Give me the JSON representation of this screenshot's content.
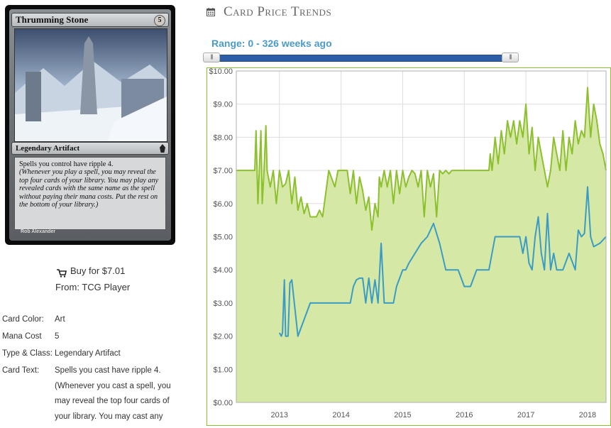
{
  "card": {
    "name": "Thrumming Stone",
    "mana_cost": "5",
    "type_line": "Legendary Artifact",
    "rules_text": "Spells you control have ripple 4.",
    "reminder_text": "(Whenever you play a spell, you may reveal the top four cards of your library. You may play any revealed cards with the same name as the spell without paying their mana costs. Put the rest on the bottom of your library.)",
    "artist": "Rob Alexander"
  },
  "buy": {
    "label": "Buy for $7.01",
    "from": "From: TCG Player",
    "icon": "cart-icon"
  },
  "details": [
    {
      "label": "Card Color:",
      "value": "Art"
    },
    {
      "label": "Mana Cost",
      "value": "5"
    },
    {
      "label": "Type & Class:",
      "value": "Legendary Artifact"
    },
    {
      "label": "Card Text:",
      "value": "Spells you cast have ripple 4.\n(Whenever you cast a spell, you may reveal the top four cards of your library. You may cast any"
    }
  ],
  "price_trends": {
    "title": "Card Price Trends",
    "icon": "calendar-icon",
    "range_label": "Range: 0 - 326 weeks ago",
    "slider": {
      "min_fraction": 0.0,
      "max_fraction": 1.0
    }
  },
  "chart_data": {
    "type": "line",
    "title": "",
    "xlabel": "",
    "ylabel": "",
    "ylim": [
      0,
      10
    ],
    "xlim": [
      2012.3,
      2018.3
    ],
    "yticks": [
      "$0.00",
      "$1.00",
      "$2.00",
      "$3.00",
      "$4.00",
      "$5.00",
      "$6.00",
      "$7.00",
      "$8.00",
      "$9.00",
      "$10.00"
    ],
    "xticks": [
      {
        "value": 2013,
        "label": "2013"
      },
      {
        "value": 2014,
        "label": "2014"
      },
      {
        "value": 2015,
        "label": "2015"
      },
      {
        "value": 2016,
        "label": "2016"
      },
      {
        "value": 2017,
        "label": "2017"
      },
      {
        "value": 2018,
        "label": "2018"
      }
    ],
    "grid": true,
    "colors": {
      "green": "#8cc02d",
      "green_fill": "#d5e8a6",
      "blue": "#3a9cc4",
      "plot_border": "#8cc02d"
    },
    "series": [
      {
        "color": "green",
        "area": true,
        "x": [
          2012.3,
          2012.6,
          2012.62,
          2012.65,
          2012.7,
          2012.72,
          2012.75,
          2012.78,
          2012.8,
          2012.85,
          2012.9,
          2012.95,
          2013.0,
          2013.05,
          2013.1,
          2013.15,
          2013.2,
          2013.25,
          2013.3,
          2013.35,
          2013.4,
          2013.45,
          2013.5,
          2013.55,
          2013.6,
          2013.65,
          2013.7,
          2013.8,
          2013.9,
          2013.95,
          2014.0,
          2014.1,
          2014.15,
          2014.2,
          2014.25,
          2014.3,
          2014.35,
          2014.4,
          2014.45,
          2014.5,
          2014.55,
          2014.6,
          2014.62,
          2014.65,
          2014.7,
          2014.75,
          2014.8,
          2014.85,
          2014.9,
          2014.95,
          2015.0,
          2015.05,
          2015.1,
          2015.15,
          2015.2,
          2015.25,
          2015.3,
          2015.35,
          2015.4,
          2015.45,
          2015.5,
          2015.55,
          2015.6,
          2015.65,
          2015.7,
          2015.75,
          2015.8,
          2015.9,
          2016.0,
          2016.2,
          2016.4,
          2016.42,
          2016.45,
          2016.5,
          2016.55,
          2016.6,
          2016.65,
          2016.7,
          2016.75,
          2016.8,
          2016.85,
          2016.9,
          2016.95,
          2017.0,
          2017.05,
          2017.1,
          2017.15,
          2017.2,
          2017.25,
          2017.3,
          2017.35,
          2017.4,
          2017.45,
          2017.5,
          2017.55,
          2017.6,
          2017.65,
          2017.7,
          2017.75,
          2017.8,
          2017.85,
          2017.9,
          2017.95,
          2018.0,
          2018.05,
          2018.1,
          2018.15,
          2018.2,
          2018.25,
          2018.3
        ],
        "y": [
          7.0,
          7.0,
          8.2,
          6.0,
          8.2,
          6.0,
          7.0,
          8.35,
          7.0,
          6.5,
          7.0,
          6.0,
          7.0,
          6.5,
          6.6,
          7.0,
          6.0,
          6.8,
          5.8,
          6.2,
          5.7,
          6.0,
          5.6,
          5.6,
          5.6,
          5.8,
          5.6,
          7.0,
          6.5,
          7.0,
          7.0,
          7.0,
          6.3,
          7.0,
          6.0,
          6.8,
          6.4,
          5.8,
          6.2,
          5.2,
          6.0,
          5.6,
          6.8,
          6.5,
          7.0,
          6.5,
          7.0,
          6.0,
          7.0,
          6.3,
          7.0,
          6.5,
          6.8,
          7.0,
          6.9,
          6.5,
          7.0,
          5.6,
          7.0,
          6.5,
          6.9,
          5.6,
          7.0,
          6.9,
          7.0,
          6.9,
          7.0,
          7.0,
          7.0,
          7.0,
          7.0,
          7.5,
          7.0,
          8.0,
          7.2,
          8.2,
          7.5,
          8.5,
          8.0,
          8.5,
          7.8,
          8.5,
          8.0,
          9.0,
          7.5,
          8.3,
          7.0,
          8.0,
          7.5,
          7.0,
          6.5,
          7.0,
          8.0,
          7.5,
          7.0,
          8.2,
          7.0,
          8.0,
          7.5,
          8.5,
          7.8,
          8.2,
          8.0,
          9.5,
          8.0,
          9.0,
          8.5,
          7.8,
          7.5,
          7.0
        ]
      },
      {
        "color": "blue",
        "area": false,
        "x": [
          2013.0,
          2013.03,
          2013.05,
          2013.08,
          2013.1,
          2013.14,
          2013.17,
          2013.2,
          2013.3,
          2013.5,
          2013.7,
          2014.0,
          2014.15,
          2014.2,
          2014.25,
          2014.3,
          2014.35,
          2014.4,
          2014.45,
          2014.5,
          2014.55,
          2014.6,
          2014.65,
          2014.7,
          2014.75,
          2014.8,
          2014.85,
          2014.9,
          2015.0,
          2015.05,
          2015.1,
          2015.2,
          2015.3,
          2015.4,
          2015.5,
          2015.6,
          2015.7,
          2015.8,
          2015.9,
          2016.0,
          2016.1,
          2016.2,
          2016.3,
          2016.4,
          2016.5,
          2016.6,
          2016.7,
          2016.8,
          2016.9,
          2016.95,
          2017.0,
          2017.05,
          2017.1,
          2017.15,
          2017.2,
          2017.25,
          2017.3,
          2017.35,
          2017.4,
          2017.45,
          2017.5,
          2017.6,
          2017.7,
          2017.8,
          2017.85,
          2017.9,
          2017.95,
          2018.0,
          2018.05,
          2018.1,
          2018.2,
          2018.3
        ],
        "y": [
          2.1,
          2.0,
          2.1,
          3.7,
          2.0,
          2.0,
          3.6,
          3.7,
          2.0,
          3.0,
          3.0,
          3.0,
          3.0,
          3.5,
          3.7,
          3.75,
          3.75,
          3.0,
          3.75,
          3.0,
          3.7,
          3.0,
          4.8,
          3.0,
          3.0,
          3.0,
          3.0,
          3.5,
          4.0,
          4.0,
          4.2,
          4.5,
          4.8,
          5.0,
          5.4,
          4.8,
          4.0,
          4.0,
          4.0,
          3.5,
          3.5,
          4.0,
          4.0,
          4.0,
          5.0,
          5.0,
          5.0,
          5.0,
          5.0,
          4.5,
          5.0,
          4.2,
          4.0,
          5.0,
          5.6,
          4.5,
          4.0,
          5.7,
          4.0,
          4.5,
          4.0,
          4.0,
          4.5,
          4.0,
          5.2,
          5.0,
          5.1,
          6.5,
          5.0,
          4.7,
          4.8,
          5.0
        ]
      }
    ]
  }
}
